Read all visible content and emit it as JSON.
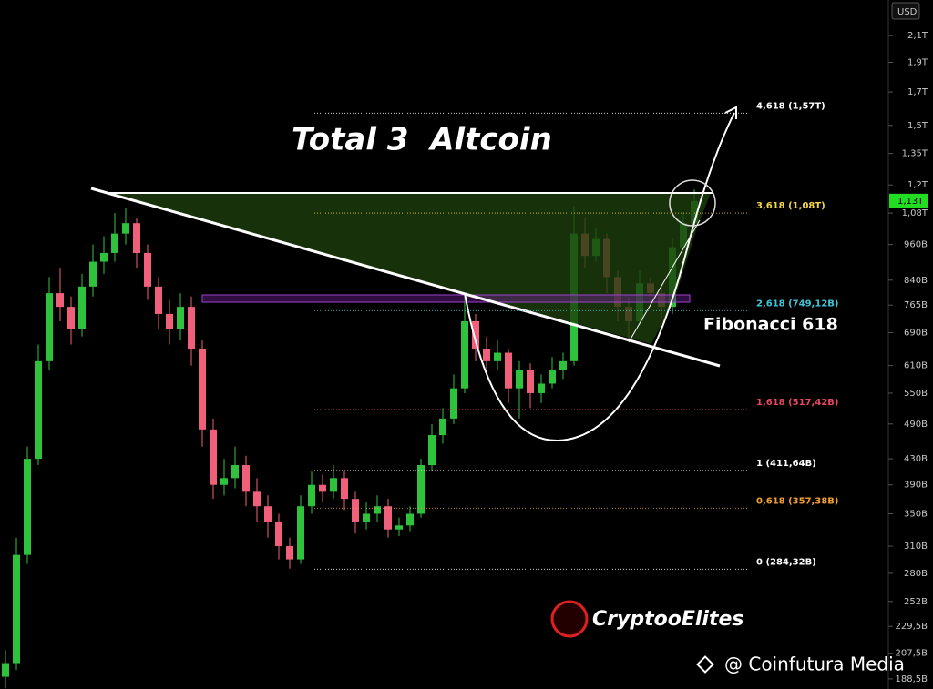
{
  "chart_data": {
    "type": "candlestick",
    "title": "Total 3  Altcoin",
    "currency": "USD",
    "log_scale": true,
    "grid": false,
    "ylim": [
      181.5,
      2400
    ],
    "yticks": [
      {
        "value": 2100,
        "label": "2,1T"
      },
      {
        "value": 1900,
        "label": "1,9T"
      },
      {
        "value": 1700,
        "label": "1,7T"
      },
      {
        "value": 1500,
        "label": "1,5T"
      },
      {
        "value": 1350,
        "label": "1,35T"
      },
      {
        "value": 1200,
        "label": "1,2T"
      },
      {
        "value": 1080,
        "label": "1,08T"
      },
      {
        "value": 960,
        "label": "960B"
      },
      {
        "value": 840,
        "label": "840B"
      },
      {
        "value": 765,
        "label": "765B"
      },
      {
        "value": 690,
        "label": "690B"
      },
      {
        "value": 610,
        "label": "610B"
      },
      {
        "value": 550,
        "label": "550B"
      },
      {
        "value": 490,
        "label": "490B"
      },
      {
        "value": 430,
        "label": "430B"
      },
      {
        "value": 390,
        "label": "390B"
      },
      {
        "value": 350,
        "label": "350B"
      },
      {
        "value": 310,
        "label": "310B"
      },
      {
        "value": 280,
        "label": "280B"
      },
      {
        "value": 252,
        "label": "252B"
      },
      {
        "value": 229.5,
        "label": "229,5B"
      },
      {
        "value": 207.5,
        "label": "207,5B"
      },
      {
        "value": 188.5,
        "label": "188,5B"
      }
    ],
    "up_color": "#2fc23c",
    "down_color": "#f0607a",
    "candles": {
      "open": [
        190,
        200,
        300,
        430,
        620,
        800,
        760,
        700,
        820,
        900,
        930,
        1000,
        1040,
        930,
        820,
        740,
        700,
        760,
        650,
        480,
        390,
        400,
        420,
        380,
        360,
        340,
        310,
        295,
        360,
        390,
        380,
        400,
        370,
        340,
        350,
        360,
        330,
        335,
        350,
        420,
        470,
        500,
        560,
        720,
        650,
        620,
        640,
        560,
        600,
        550,
        570,
        600,
        620,
        1000,
        920,
        980,
        850,
        760,
        720,
        830,
        800,
        760,
        950,
        1040
      ],
      "high": [
        210,
        320,
        450,
        660,
        850,
        880,
        790,
        860,
        960,
        990,
        1080,
        1100,
        1060,
        960,
        850,
        780,
        800,
        790,
        670,
        500,
        430,
        450,
        435,
        400,
        375,
        350,
        320,
        375,
        410,
        405,
        420,
        410,
        380,
        365,
        375,
        370,
        345,
        360,
        430,
        490,
        520,
        590,
        800,
        740,
        680,
        670,
        650,
        620,
        615,
        590,
        630,
        640,
        1110,
        1060,
        1020,
        1000,
        870,
        790,
        870,
        850,
        820,
        980,
        1080,
        1180
      ],
      "low": [
        182,
        195,
        290,
        420,
        600,
        720,
        660,
        680,
        790,
        860,
        900,
        960,
        880,
        780,
        700,
        660,
        670,
        610,
        450,
        370,
        375,
        385,
        360,
        340,
        320,
        295,
        285,
        290,
        350,
        365,
        370,
        355,
        325,
        330,
        340,
        320,
        322,
        328,
        345,
        410,
        455,
        490,
        550,
        620,
        590,
        600,
        530,
        500,
        520,
        530,
        560,
        580,
        610,
        880,
        900,
        800,
        720,
        670,
        710,
        760,
        730,
        740,
        930,
        1020
      ],
      "close": [
        200,
        300,
        430,
        620,
        800,
        760,
        700,
        820,
        900,
        930,
        1000,
        1040,
        930,
        820,
        740,
        700,
        760,
        650,
        480,
        390,
        400,
        420,
        380,
        360,
        340,
        310,
        295,
        360,
        390,
        380,
        400,
        370,
        340,
        350,
        360,
        330,
        335,
        350,
        420,
        470,
        500,
        560,
        720,
        650,
        620,
        640,
        560,
        600,
        550,
        570,
        600,
        620,
        1000,
        920,
        980,
        850,
        760,
        720,
        830,
        800,
        760,
        950,
        1040,
        1130
      ]
    },
    "last_price": {
      "value": 1130,
      "label": "1,13T",
      "color": "#22dd22"
    },
    "levels": [
      {
        "value": 1570,
        "label": "4,618 (1,57T)",
        "color": "#ffffff"
      },
      {
        "value": 1080,
        "label": "3,618 (1,08T)",
        "color": "#f2d64b"
      },
      {
        "value": 749.12,
        "label": "2,618 (749,12B)",
        "color": "#3fc4d6"
      },
      {
        "value": 517.42,
        "label": "1,618 (517,42B)",
        "color": "#e5485e"
      },
      {
        "value": 411.64,
        "label": "1 (411,64B)",
        "color": "#ffffff"
      },
      {
        "value": 357.38,
        "label": "0,618 (357,38B)",
        "color": "#f0a030"
      },
      {
        "value": 284.32,
        "label": "0 (284,32B)",
        "color": "#ffffff"
      }
    ],
    "annotations": {
      "pattern": "Fibonacci 618",
      "logo": "CryptooElites",
      "watermark": "@ Coinfutura Media"
    }
  }
}
